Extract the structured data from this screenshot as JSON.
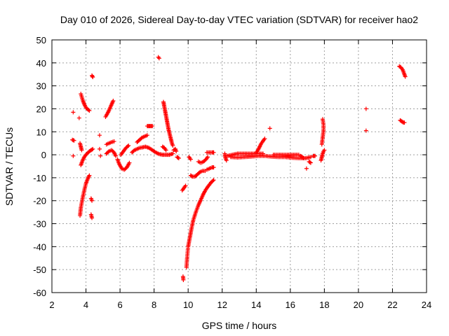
{
  "chart_data": {
    "type": "scatter",
    "title": "Day 010 of 2026, Sidereal Day-to-day VTEC variation (SDTVAR) for receiver hao2",
    "xlabel": "GPS time / hours",
    "ylabel": "SDTVAR / TECUs",
    "xlim": [
      2,
      24
    ],
    "ylim": [
      -60,
      50
    ],
    "x_ticks": [
      2,
      4,
      6,
      8,
      10,
      12,
      14,
      16,
      18,
      20,
      22,
      24
    ],
    "y_ticks": [
      -60,
      -50,
      -40,
      -30,
      -20,
      -10,
      0,
      10,
      20,
      30,
      40,
      50
    ],
    "grid": true,
    "marker": "+",
    "color": "#ff0000",
    "series": [
      {
        "segments": [
          [
            [
              3.25,
              18.5
            ]
          ],
          [
            [
              3.2,
              6.5
            ],
            [
              3.3,
              6.2
            ]
          ],
          [
            [
              3.25,
              -0.5
            ]
          ],
          [
            [
              3.6,
              16.0
            ]
          ],
          [
            [
              3.65,
              5.0
            ],
            [
              3.7,
              3.5
            ],
            [
              3.75,
              2.0
            ]
          ],
          [
            [
              3.7,
              26.5
            ],
            [
              3.8,
              24.0
            ],
            [
              3.9,
              22.0
            ],
            [
              4.0,
              20.5
            ],
            [
              4.1,
              19.8
            ],
            [
              4.2,
              19.2
            ]
          ],
          [
            [
              3.65,
              -26.5
            ],
            [
              3.7,
              -23.0
            ],
            [
              3.8,
              -19.0
            ],
            [
              3.9,
              -15.5
            ],
            [
              4.0,
              -12.5
            ],
            [
              4.1,
              -10.5
            ],
            [
              4.2,
              -9.0
            ]
          ],
          [
            [
              3.7,
              -4.5
            ],
            [
              3.8,
              -2.5
            ],
            [
              3.9,
              -1.0
            ],
            [
              4.0,
              0.0
            ],
            [
              4.1,
              0.8
            ],
            [
              4.2,
              1.5
            ],
            [
              4.3,
              2.0
            ],
            [
              4.4,
              2.5
            ]
          ],
          [
            [
              4.35,
              34.5
            ],
            [
              4.4,
              33.8
            ]
          ],
          [
            [
              4.3,
              -19.0
            ],
            [
              4.35,
              -20.0
            ]
          ],
          [
            [
              4.3,
              -26.0
            ],
            [
              4.35,
              -27.5
            ]
          ],
          [
            [
              4.8,
              8.5
            ]
          ],
          [
            [
              4.8,
              2.5
            ]
          ],
          [
            [
              4.85,
              -0.5
            ]
          ],
          [
            [
              5.15,
              16.5
            ],
            [
              5.3,
              18.5
            ],
            [
              5.45,
              21.0
            ],
            [
              5.6,
              23.5
            ]
          ],
          [
            [
              5.2,
              4.5
            ],
            [
              5.35,
              5.0
            ],
            [
              5.5,
              5.5
            ],
            [
              5.65,
              5.8
            ]
          ],
          [
            [
              5.2,
              0.5
            ],
            [
              5.35,
              1.5
            ],
            [
              5.5,
              2.0
            ],
            [
              5.65,
              1.0
            ],
            [
              5.75,
              -0.5
            ]
          ],
          [
            [
              5.85,
              -2.0
            ],
            [
              5.95,
              -4.0
            ],
            [
              6.1,
              -6.0
            ],
            [
              6.25,
              -6.5
            ],
            [
              6.4,
              -5.5
            ],
            [
              6.55,
              -3.5
            ]
          ],
          [
            [
              6.05,
              0.0
            ],
            [
              6.2,
              1.5
            ],
            [
              6.35,
              3.0
            ],
            [
              6.5,
              4.0
            ]
          ],
          [
            [
              6.7,
              1.0
            ],
            [
              6.85,
              2.0
            ],
            [
              7.0,
              2.5
            ],
            [
              7.15,
              3.0
            ],
            [
              7.3,
              3.2
            ],
            [
              7.5,
              3.5
            ],
            [
              7.7,
              3.0
            ],
            [
              7.9,
              2.0
            ],
            [
              8.1,
              1.0
            ],
            [
              8.3,
              0.3
            ],
            [
              8.5,
              0.0
            ],
            [
              8.7,
              0.0
            ],
            [
              8.9,
              0.0
            ],
            [
              9.1,
              0.5
            ]
          ],
          [
            [
              7.0,
              5.5
            ],
            [
              7.15,
              6.5
            ],
            [
              7.3,
              7.5
            ],
            [
              7.45,
              8.0
            ],
            [
              7.6,
              8.5
            ]
          ],
          [
            [
              7.6,
              12.5
            ],
            [
              7.7,
              12.5
            ],
            [
              7.8,
              12.5
            ],
            [
              7.9,
              12.5
            ]
          ],
          [
            [
              8.25,
              42.5
            ],
            [
              8.3,
              42.0
            ]
          ],
          [
            [
              8.55,
              23.0
            ],
            [
              8.6,
              21.0
            ],
            [
              8.65,
              19.0
            ],
            [
              8.7,
              17.0
            ],
            [
              8.75,
              15.0
            ],
            [
              8.8,
              13.0
            ],
            [
              8.85,
              11.0
            ],
            [
              8.9,
              9.5
            ],
            [
              8.95,
              8.0
            ],
            [
              9.0,
              6.5
            ],
            [
              9.05,
              5.0
            ],
            [
              9.1,
              4.0
            ]
          ],
          [
            [
              8.5,
              3.5
            ],
            [
              8.6,
              3.0
            ],
            [
              8.7,
              2.0
            ]
          ],
          [
            [
              9.15,
              2.0
            ],
            [
              9.25,
              2.5
            ],
            [
              9.3,
              1.5
            ]
          ],
          [
            [
              9.35,
              -1.0
            ],
            [
              9.45,
              -1.5
            ]
          ],
          [
            [
              9.7,
              -53.0
            ],
            [
              9.72,
              -54.5
            ]
          ],
          [
            [
              9.65,
              -15.5
            ],
            [
              9.75,
              -14.5
            ],
            [
              9.85,
              -13.5
            ]
          ],
          [
            [
              9.9,
              -49.0
            ],
            [
              9.95,
              -44.0
            ],
            [
              10.0,
              -40.0
            ],
            [
              10.1,
              -36.0
            ],
            [
              10.2,
              -32.0
            ],
            [
              10.3,
              -28.5
            ],
            [
              10.45,
              -25.0
            ],
            [
              10.6,
              -22.0
            ],
            [
              10.75,
              -19.5
            ],
            [
              10.9,
              -17.0
            ],
            [
              11.05,
              -15.0
            ],
            [
              11.2,
              -13.5
            ],
            [
              11.35,
              -12.0
            ],
            [
              11.5,
              -11.0
            ]
          ],
          [
            [
              10.05,
              -1.0
            ],
            [
              10.15,
              -2.0
            ]
          ],
          [
            [
              10.15,
              -9.0
            ],
            [
              10.25,
              -9.5
            ],
            [
              10.4,
              -9.5
            ],
            [
              10.55,
              -8.5
            ],
            [
              10.7,
              -7.5
            ],
            [
              10.85,
              -7.0
            ],
            [
              11.0,
              -7.0
            ]
          ],
          [
            [
              10.6,
              -3.0
            ],
            [
              10.75,
              -3.5
            ],
            [
              10.9,
              -3.0
            ],
            [
              11.05,
              -2.0
            ],
            [
              11.15,
              -1.0
            ]
          ],
          [
            [
              11.1,
              -6.5
            ],
            [
              11.25,
              -6.0
            ],
            [
              11.4,
              -5.5
            ],
            [
              11.5,
              -5.5
            ]
          ],
          [
            [
              11.1,
              1.0
            ],
            [
              11.25,
              1.0
            ],
            [
              11.4,
              1.0
            ],
            [
              11.5,
              1.0
            ]
          ],
          [
            [
              12.15,
              0.5
            ],
            [
              12.2,
              -1.5
            ],
            [
              12.25,
              -2.5
            ]
          ],
          [
            [
              12.3,
              -0.5
            ],
            [
              12.6,
              0.0
            ],
            [
              12.9,
              0.5
            ],
            [
              13.2,
              0.5
            ],
            [
              13.5,
              0.5
            ],
            [
              13.8,
              0.5
            ],
            [
              14.1,
              0.5
            ],
            [
              14.4,
              0.5
            ]
          ],
          [
            [
              12.5,
              -1.0
            ],
            [
              12.9,
              -1.2
            ],
            [
              13.3,
              -1.0
            ],
            [
              13.7,
              -0.8
            ],
            [
              14.1,
              -0.5
            ],
            [
              14.5,
              -0.5
            ],
            [
              14.9,
              -0.8
            ],
            [
              15.3,
              -1.0
            ],
            [
              15.7,
              -1.0
            ],
            [
              16.1,
              -1.3
            ],
            [
              16.5,
              -1.5
            ],
            [
              16.9,
              -1.5
            ],
            [
              17.2,
              -1.0
            ]
          ],
          [
            [
              14.0,
              1.0
            ],
            [
              14.1,
              2.0
            ],
            [
              14.2,
              3.5
            ],
            [
              14.3,
              5.0
            ],
            [
              14.4,
              6.0
            ],
            [
              14.5,
              7.0
            ]
          ],
          [
            [
              14.8,
              11.5
            ]
          ],
          [
            [
              15.0,
              0.0
            ],
            [
              15.3,
              0.0
            ],
            [
              15.6,
              0.0
            ],
            [
              15.9,
              0.0
            ],
            [
              16.2,
              0.0
            ],
            [
              16.5,
              0.0
            ]
          ],
          [
            [
              16.6,
              -0.5
            ],
            [
              16.7,
              -1.0
            ],
            [
              16.8,
              -1.5
            ]
          ],
          [
            [
              16.95,
              -6.0
            ]
          ],
          [
            [
              17.1,
              -3.0
            ],
            [
              17.2,
              -3.5
            ]
          ],
          [
            [
              17.35,
              -0.5
            ],
            [
              17.45,
              -0.5
            ]
          ],
          [
            [
              17.8,
              -2.5
            ],
            [
              17.85,
              -1.0
            ],
            [
              17.9,
              0.5
            ],
            [
              17.95,
              1.5
            ],
            [
              18.0,
              2.0
            ]
          ],
          [
            [
              17.85,
              4.5
            ],
            [
              17.9,
              7.5
            ],
            [
              17.95,
              10.5
            ],
            [
              17.95,
              13.0
            ],
            [
              17.9,
              15.5
            ]
          ],
          [
            [
              20.45,
              20.0
            ]
          ],
          [
            [
              20.45,
              10.5
            ]
          ],
          [
            [
              22.4,
              38.5
            ],
            [
              22.5,
              38.0
            ],
            [
              22.6,
              37.0
            ],
            [
              22.65,
              36.0
            ],
            [
              22.7,
              35.0
            ],
            [
              22.75,
              34.0
            ]
          ],
          [
            [
              22.45,
              15.0
            ],
            [
              22.55,
              14.5
            ],
            [
              22.65,
              14.0
            ],
            [
              22.7,
              14.0
            ]
          ]
        ]
      }
    ]
  }
}
